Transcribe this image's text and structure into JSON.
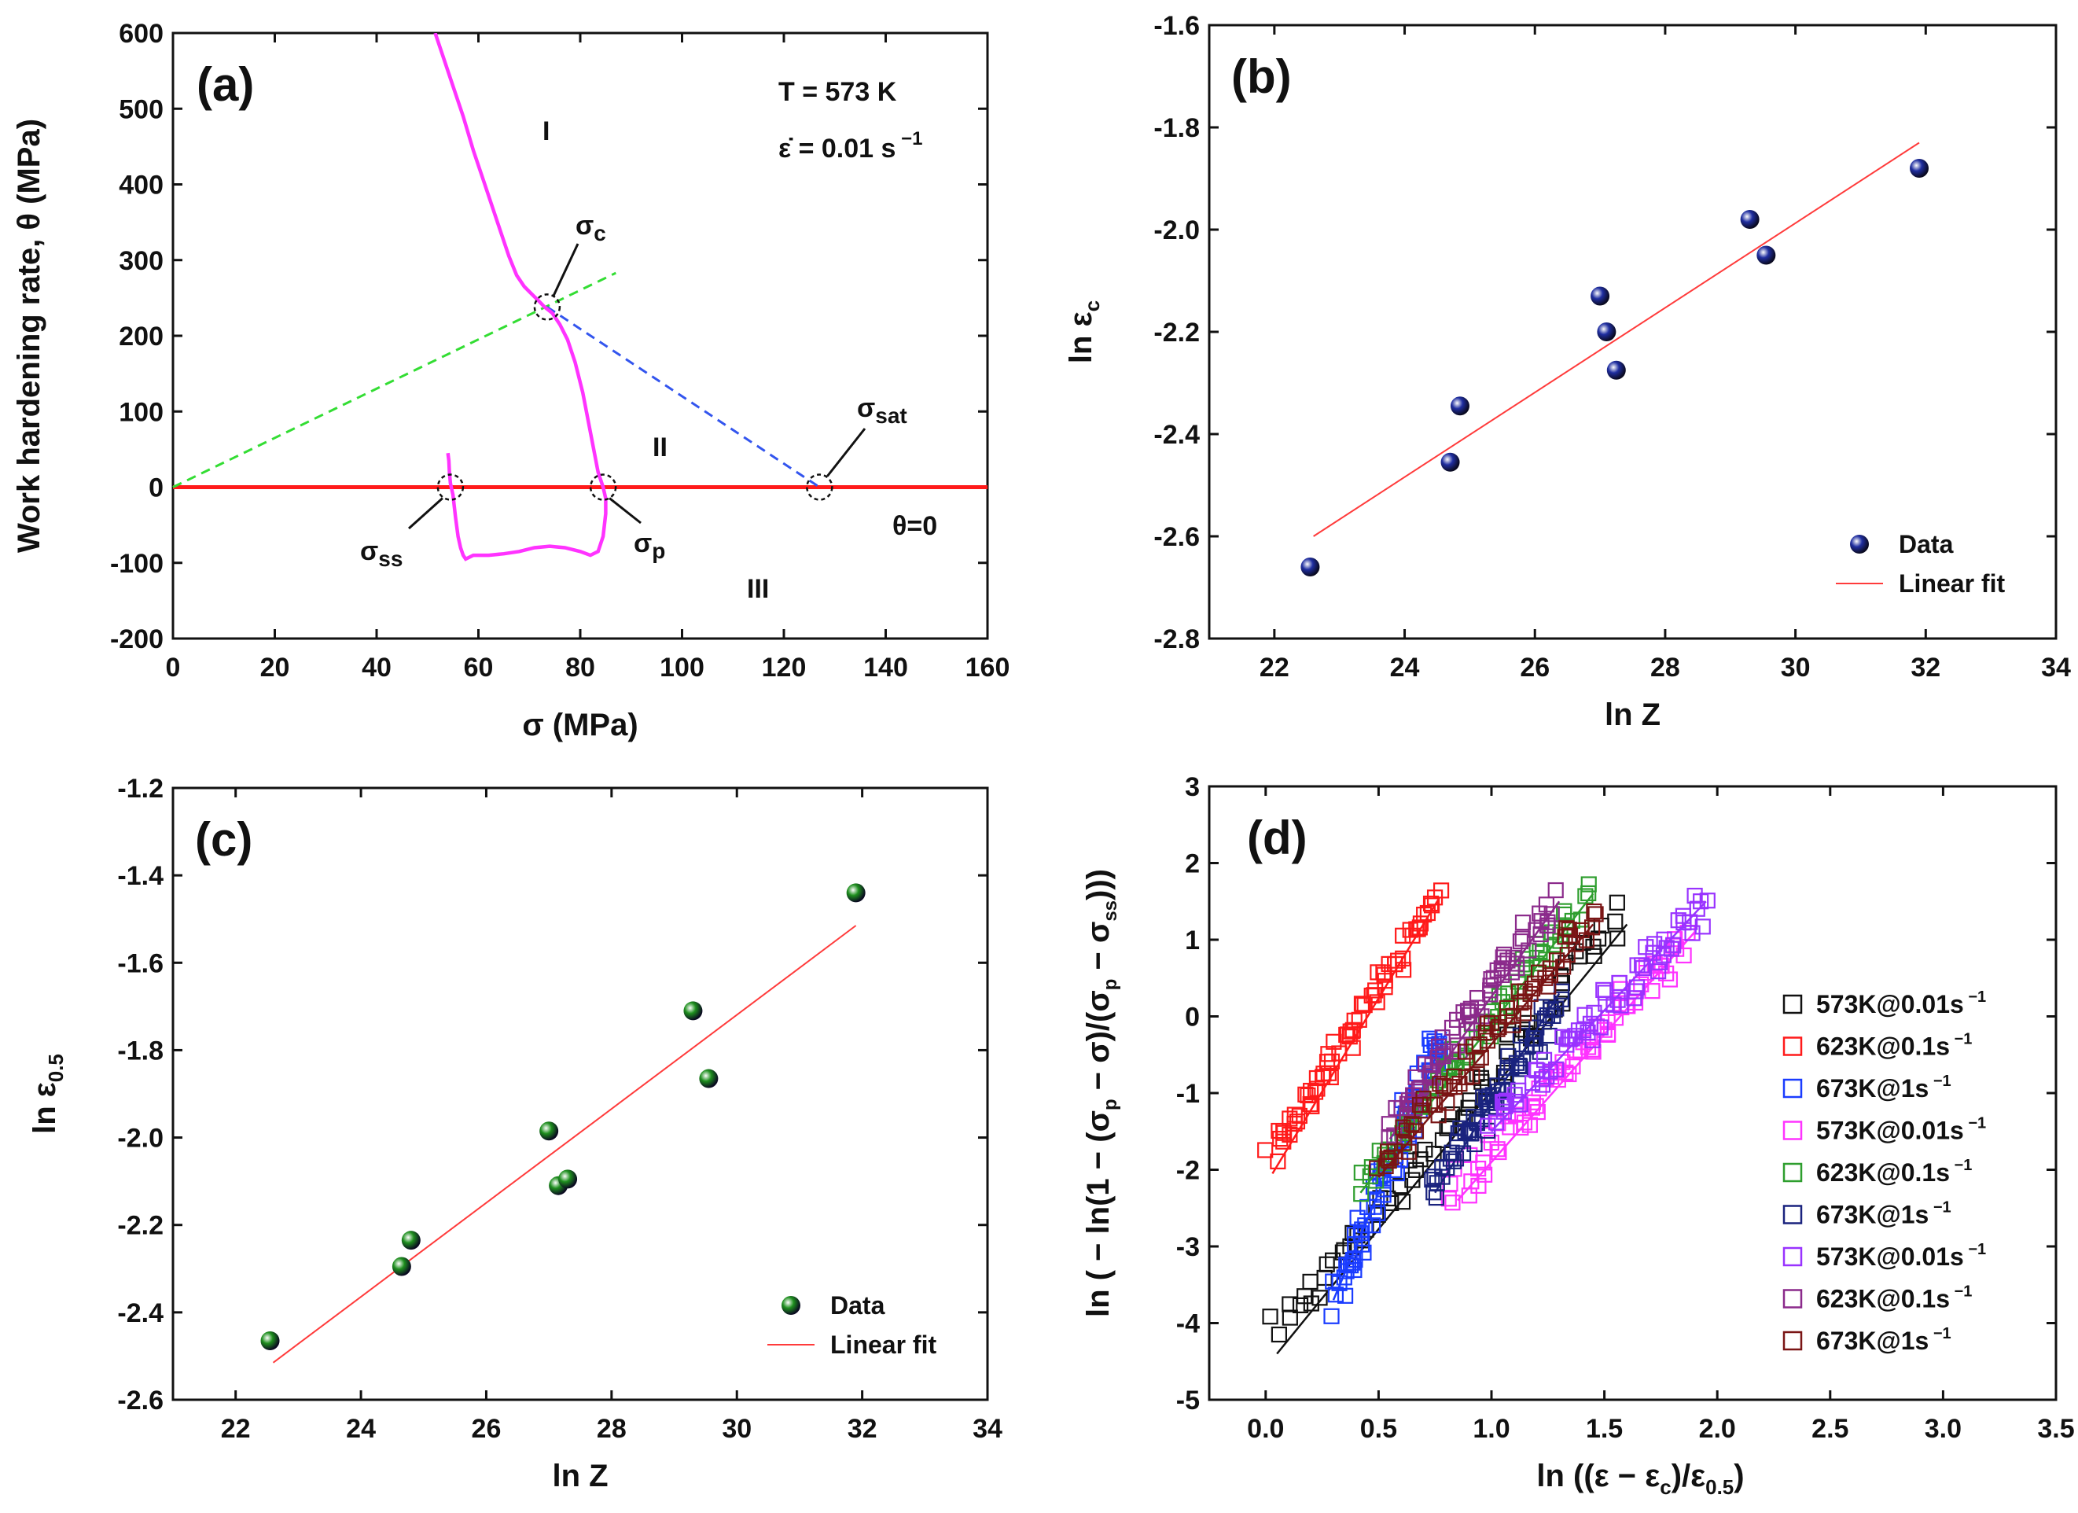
{
  "chart_data": [
    {
      "id": "a",
      "type": "line",
      "panel_label": "(a)",
      "xlabel": "σ (MPa)",
      "ylabel": "Work hardening rate, θ (MPa)",
      "xlim": [
        0,
        160
      ],
      "ylim": [
        -200,
        600
      ],
      "xticks": [
        0,
        20,
        40,
        60,
        80,
        100,
        120,
        140,
        160
      ],
      "yticks": [
        -200,
        -100,
        0,
        100,
        200,
        300,
        400,
        500,
        600
      ],
      "annotations": {
        "temperature": "T = 573 K",
        "strain_rate_prefix": "ε̇ = 0.01 s",
        "strain_rate_exp": "−1",
        "region_1": "I",
        "region_2": "II",
        "region_3": "III",
        "theta_zero": "θ=0",
        "sigma_c": "σc",
        "sigma_sat": "σsat",
        "sigma_ss": "σss",
        "sigma_p": "σp"
      },
      "colors": {
        "curve": "#ff33ff",
        "zero_line": "#ff1a1a",
        "green_dash": "#33dd33",
        "blue_dash": "#3355ee"
      },
      "curve": {
        "x": [
          51.5,
          53,
          55,
          57,
          59,
          61,
          63,
          64.5,
          66,
          67.5,
          69,
          70.5,
          72,
          73,
          74.5,
          76,
          77.5,
          79,
          80.5,
          81.5,
          82.5,
          83.5,
          84.5,
          85,
          85,
          84.5,
          83.5,
          82,
          80,
          77,
          74,
          71,
          68,
          65,
          62,
          59,
          57.5,
          57,
          56.5,
          56,
          55.5,
          55,
          54.5,
          54.3,
          54.2,
          54
        ],
        "y": [
          600,
          570,
          530,
          490,
          445,
          405,
          365,
          335,
          305,
          280,
          265,
          255,
          245,
          238,
          230,
          215,
          195,
          165,
          125,
          90,
          55,
          20,
          0,
          -15,
          -35,
          -65,
          -85,
          -90,
          -85,
          -80,
          -78,
          -80,
          -85,
          -88,
          -90,
          -90,
          -95,
          -90,
          -80,
          -65,
          -40,
          -10,
          5,
          20,
          35,
          45
        ]
      },
      "green_dash": {
        "x": [
          0,
          87
        ],
        "y": [
          0,
          283
        ]
      },
      "blue_dash": {
        "x": [
          73.5,
          127
        ],
        "y": [
          238,
          0
        ]
      },
      "markers": [
        {
          "name": "sigma_c",
          "x": 73.5,
          "y": 238
        },
        {
          "name": "sigma_sat",
          "x": 127,
          "y": 0
        },
        {
          "name": "sigma_ss",
          "x": 54.5,
          "y": 0
        },
        {
          "name": "sigma_p",
          "x": 84.5,
          "y": 0
        }
      ]
    },
    {
      "id": "b",
      "type": "scatter",
      "panel_label": "(b)",
      "xlabel": "ln Z",
      "ylabel_main": "ln ε",
      "ylabel_sub": "c",
      "xlim": [
        21,
        34
      ],
      "ylim": [
        -2.8,
        -1.6
      ],
      "xticks": [
        22,
        24,
        26,
        28,
        30,
        32,
        34
      ],
      "yticks": [
        -2.8,
        -2.6,
        -2.4,
        -2.2,
        -2.0,
        -1.8,
        -1.6
      ],
      "colors": {
        "points": "#1f2ea0",
        "fit": "#ff3b3b"
      },
      "points": {
        "x": [
          22.55,
          24.7,
          24.85,
          27.0,
          27.1,
          27.25,
          29.3,
          29.55,
          31.9
        ],
        "y": [
          -2.66,
          -2.455,
          -2.345,
          -2.13,
          -2.2,
          -2.275,
          -1.98,
          -2.05,
          -1.88
        ]
      },
      "fit": {
        "x": [
          22.6,
          31.9
        ],
        "y": [
          -2.6,
          -1.83
        ]
      },
      "legend": {
        "points": "Data",
        "fit": "Linear fit"
      }
    },
    {
      "id": "c",
      "type": "scatter",
      "panel_label": "(c)",
      "xlabel": "ln Z",
      "ylabel_main": "ln ε",
      "ylabel_sub": "0.5",
      "xlim": [
        21,
        34
      ],
      "ylim": [
        -2.6,
        -1.2
      ],
      "xticks": [
        22,
        24,
        26,
        28,
        30,
        32,
        34
      ],
      "yticks": [
        -2.6,
        -2.4,
        -2.2,
        -2.0,
        -1.8,
        -1.6,
        -1.4,
        -1.2
      ],
      "colors": {
        "points": "#1e8f1e",
        "fit": "#ff3b3b"
      },
      "points": {
        "x": [
          22.55,
          24.65,
          24.8,
          27.0,
          27.15,
          27.3,
          29.3,
          29.55,
          31.9
        ],
        "y": [
          -2.465,
          -2.295,
          -2.235,
          -1.985,
          -2.11,
          -2.095,
          -1.71,
          -1.865,
          -1.44
        ]
      },
      "fit": {
        "x": [
          22.6,
          31.9
        ],
        "y": [
          -2.515,
          -1.515
        ]
      },
      "legend": {
        "points": "Data",
        "fit": "Linear fit"
      }
    },
    {
      "id": "d",
      "type": "scatter",
      "panel_label": "(d)",
      "xlabel_html": "ln ((ε − ε<sub>c</sub>)/ε<sub>0.5</sub>)",
      "xlabel_main": "ln ((ε − ε",
      "xlabel_sub1": "c",
      "xlabel_mid": ")/ε",
      "xlabel_sub2": "0.5",
      "xlabel_end": ")",
      "ylabel_p1": "ln ( − ln(1 − (σ",
      "ylabel_s1": "p",
      "ylabel_p2": " − σ)/(σ",
      "ylabel_s2": "p",
      "ylabel_p3": " − σ",
      "ylabel_s3": "ss",
      "ylabel_p4": ")))",
      "xlim": [
        -0.25,
        3.5
      ],
      "ylim": [
        -5,
        3
      ],
      "xticks": [
        0.0,
        0.5,
        1.0,
        1.5,
        2.0,
        2.5,
        3.0,
        3.5
      ],
      "xtick_labels": [
        "0.0",
        "0.5",
        "1.0",
        "1.5",
        "2.0",
        "2.5",
        "3.0",
        "3.5"
      ],
      "yticks": [
        -5,
        -4,
        -3,
        -2,
        -1,
        0,
        1,
        2,
        3
      ],
      "series": [
        {
          "name": "573K@0.01s",
          "sup": "−1",
          "color": "#111111",
          "x0": 0.05,
          "x1": 1.58,
          "y0": -4.1,
          "y1": 1.3,
          "fit": [
            0.05,
            -4.4,
            1.6,
            1.2
          ],
          "jitter": 0.22
        },
        {
          "name": "623K@0.1s",
          "sup": "−1",
          "color": "#ff1a1a",
          "x0": 0.02,
          "x1": 0.75,
          "y0": -1.8,
          "y1": 1.5,
          "fit": [
            0.03,
            -2.05,
            0.77,
            1.55
          ],
          "jitter": 0.15
        },
        {
          "name": "673K@1s",
          "sup": "−1",
          "color": "#1a3cff",
          "x0": 0.3,
          "x1": 0.78,
          "y0": -3.7,
          "y1": -0.2,
          "fit": [
            0.3,
            -3.7,
            0.8,
            -0.2
          ],
          "jitter": 0.25
        },
        {
          "name": "573K@0.01s",
          "sup": "−1",
          "color": "#ff33ff",
          "x0": 0.82,
          "x1": 1.85,
          "y0": -2.3,
          "y1": 1.0,
          "fit": [
            0.85,
            -2.4,
            1.9,
            1.1
          ],
          "jitter": 0.25
        },
        {
          "name": "623K@0.1s",
          "sup": "−1",
          "color": "#2e9e2e",
          "x0": 0.42,
          "x1": 1.42,
          "y0": -2.2,
          "y1": 1.6,
          "fit": [
            0.42,
            -2.3,
            1.45,
            1.6
          ],
          "jitter": 0.18
        },
        {
          "name": "673K@1s",
          "sup": "−1",
          "color": "#1a237e",
          "x0": 0.75,
          "x1": 1.3,
          "y0": -2.2,
          "y1": 0.2,
          "fit": [
            0.75,
            -2.3,
            1.3,
            0.3
          ],
          "jitter": 0.2
        },
        {
          "name": "573K@0.01s",
          "sup": "−1",
          "color": "#9933ff",
          "x0": 1.0,
          "x1": 1.95,
          "y0": -1.4,
          "y1": 1.5,
          "fit": [
            1.0,
            -1.5,
            1.95,
            1.5
          ],
          "jitter": 0.22
        },
        {
          "name": "623K@0.1s",
          "sup": "−1",
          "color": "#8b2a8b",
          "x0": 0.55,
          "x1": 1.27,
          "y0": -1.5,
          "y1": 1.5,
          "fit": [
            0.55,
            -1.6,
            1.3,
            1.5
          ],
          "jitter": 0.2
        },
        {
          "name": "673K@1s",
          "sup": "−1",
          "color": "#7a1515",
          "x0": 0.5,
          "x1": 1.45,
          "y0": -2.0,
          "y1": 1.3,
          "fit": [
            0.5,
            -2.1,
            1.45,
            1.2
          ],
          "jitter": 0.2
        }
      ]
    }
  ]
}
